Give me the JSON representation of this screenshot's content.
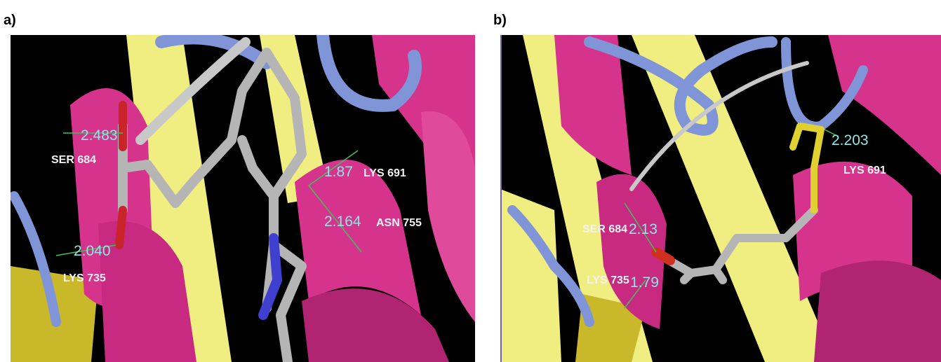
{
  "panels": [
    {
      "label": "a)",
      "annotations": [
        {
          "residue": "SER 684",
          "distance": "2.483"
        },
        {
          "residue": "LYS 691",
          "distance": "1.87"
        },
        {
          "residue": "ASN 755",
          "distance": "2.164"
        },
        {
          "residue": "LYS 735",
          "distance": "2.040"
        }
      ]
    },
    {
      "label": "b)",
      "annotations": [
        {
          "residue": "LYS 691",
          "distance": "2.203"
        },
        {
          "residue": "SER 684",
          "distance": "2.13"
        },
        {
          "residue": "LYS 735",
          "distance": "1.79"
        }
      ]
    }
  ]
}
